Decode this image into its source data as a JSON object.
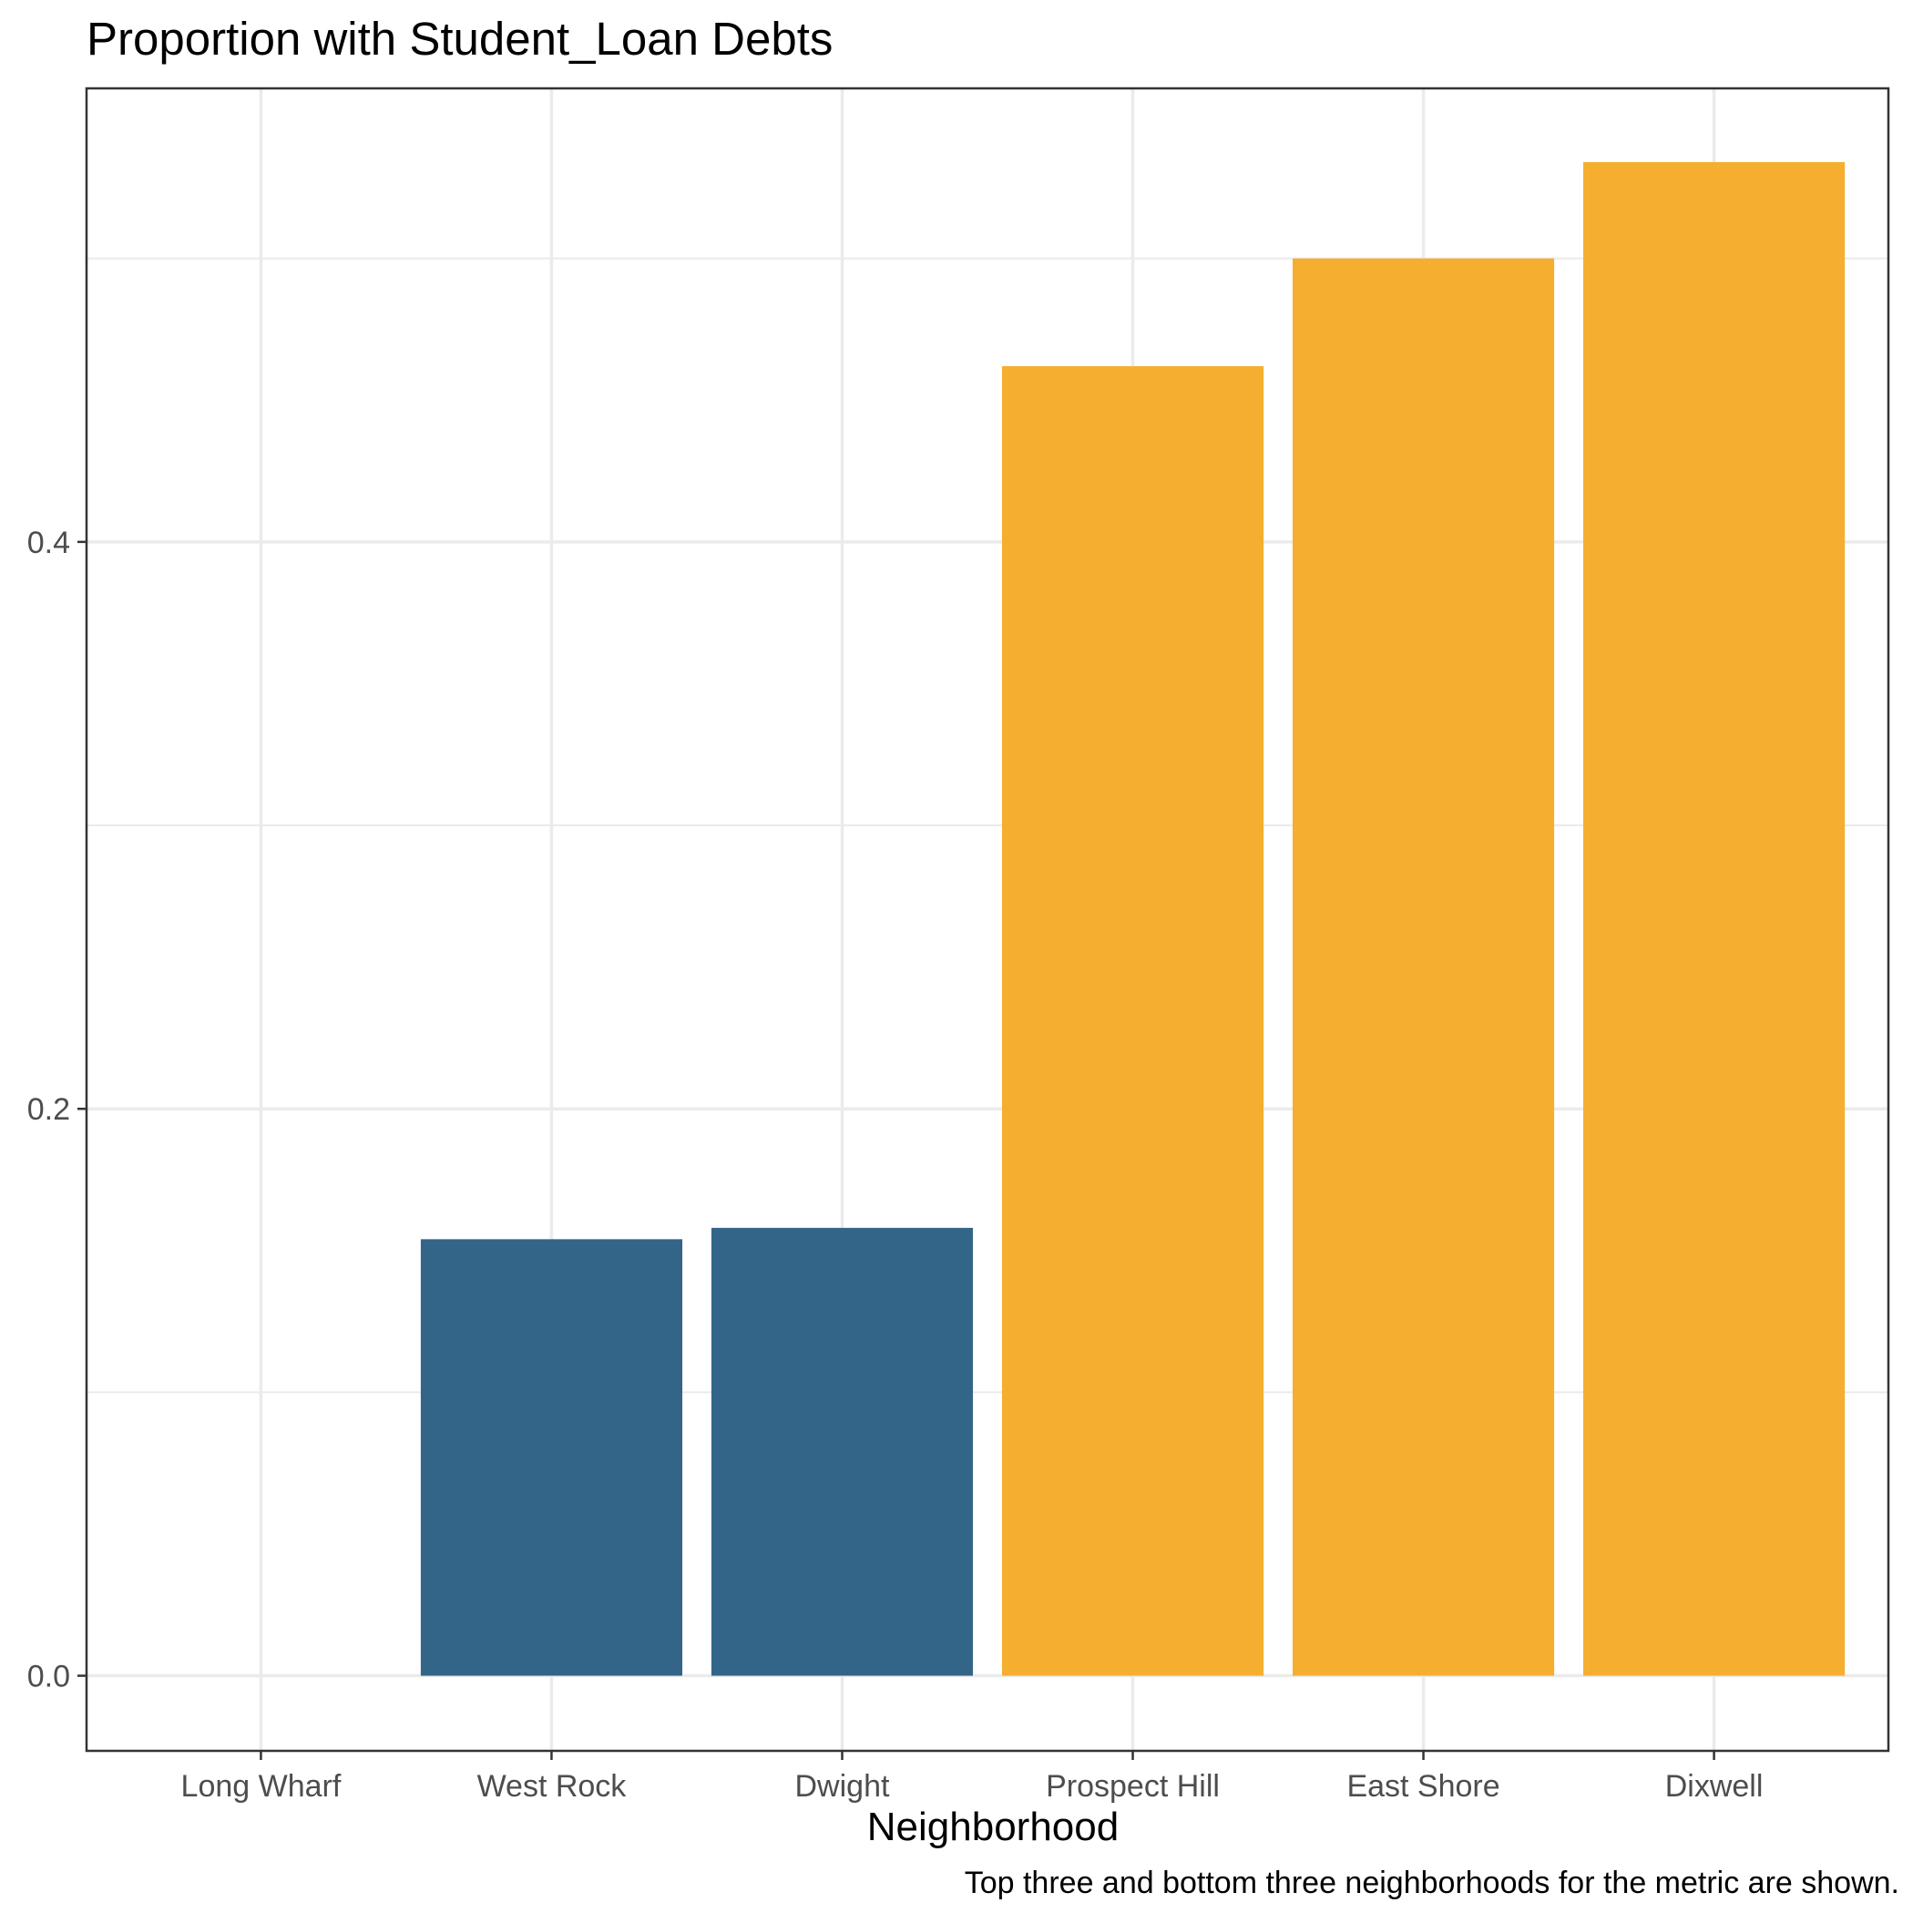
{
  "chart_data": {
    "type": "bar",
    "title": "Proportion with Student_Loan Debts",
    "xlabel": "Neighborhood",
    "ylabel": "",
    "caption": "Top three and bottom three neighborhoods for the metric are shown.",
    "categories": [
      "Long Wharf",
      "West Rock",
      "Dwight",
      "Prospect Hill",
      "East Shore",
      "Dixwell"
    ],
    "values": [
      0.0,
      0.154,
      0.158,
      0.462,
      0.5,
      0.534
    ],
    "groups": [
      "bottom",
      "bottom",
      "bottom",
      "top",
      "top",
      "top"
    ],
    "colors": {
      "bottom": "#336589",
      "top": "#f5ae2f"
    },
    "y_ticks": [
      0.0,
      0.2,
      0.4
    ],
    "y_tick_labels": [
      "0.0",
      "0.2",
      "0.4"
    ],
    "ylim": [
      -0.0265,
      0.56
    ],
    "grid": true,
    "legend": "none"
  }
}
